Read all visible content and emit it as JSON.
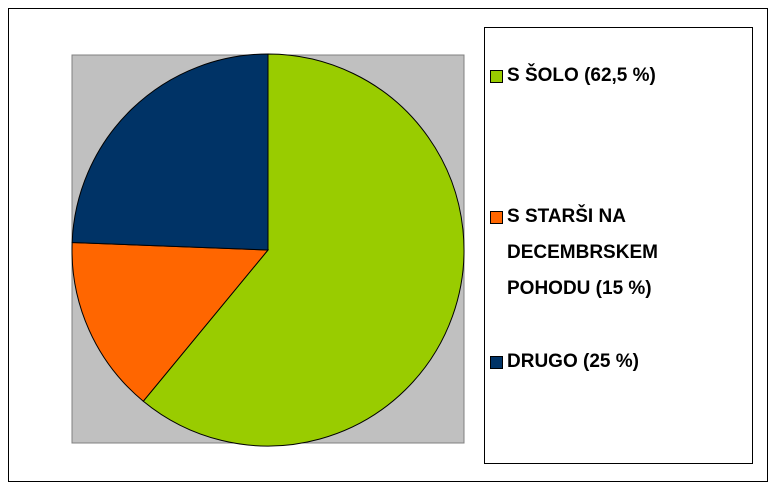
{
  "chart_data": {
    "type": "pie",
    "categories": [
      "S ŠOLO (62,5 %)",
      "S STARŠI NA DECEMBRSKEM POHODU (15 %)",
      "DRUGO (25 %)"
    ],
    "values": [
      62.5,
      15,
      25
    ],
    "colors": [
      "#99cc00",
      "#ff6600",
      "#003366"
    ],
    "legend": "right"
  }
}
